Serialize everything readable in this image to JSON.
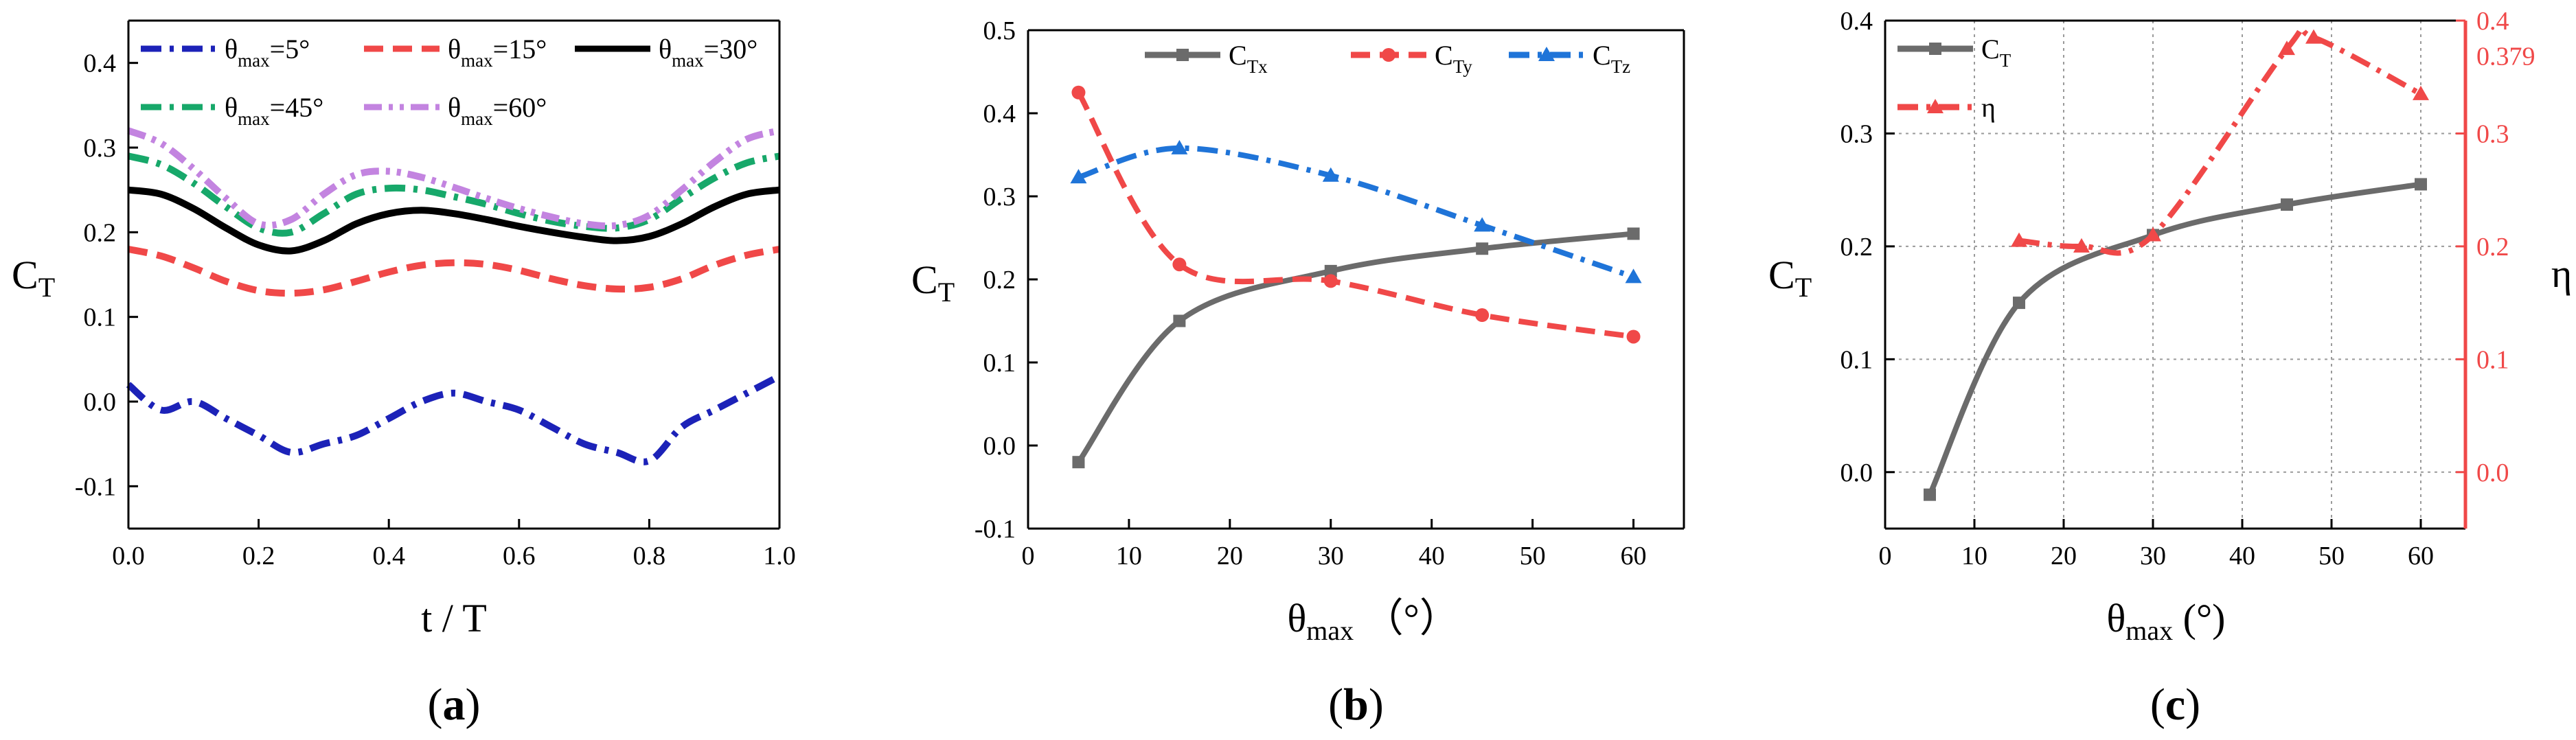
{
  "chart_data": [
    {
      "type": "line",
      "panel_label": "(a)",
      "panel_letter": "a",
      "ylabel": "C",
      "ylabel_sub": "T",
      "xlabel": "t  / T",
      "xlim": [
        0.0,
        1.0
      ],
      "ylim": [
        -0.15,
        0.45
      ],
      "xticks": [
        "0.0",
        "0.2",
        "0.4",
        "0.6",
        "0.8",
        "1.0"
      ],
      "yticks": [
        "-0.1",
        "0.0",
        "0.1",
        "0.2",
        "0.3",
        "0.4"
      ],
      "legend_position": "top",
      "series": [
        {
          "name": "θmax=5°",
          "name_main": "θ",
          "name_sub": "max",
          "name_tail": "=5°",
          "color": "#1c22b8",
          "dash": "dashdot",
          "x": [
            0.0,
            0.05,
            0.1,
            0.15,
            0.2,
            0.25,
            0.3,
            0.35,
            0.4,
            0.45,
            0.5,
            0.55,
            0.6,
            0.65,
            0.7,
            0.75,
            0.8,
            0.85,
            0.9,
            0.95,
            1.0
          ],
          "y": [
            0.02,
            -0.01,
            0.0,
            -0.02,
            -0.04,
            -0.06,
            -0.05,
            -0.04,
            -0.02,
            0.0,
            0.01,
            0.0,
            -0.01,
            -0.03,
            -0.05,
            -0.06,
            -0.07,
            -0.03,
            -0.01,
            0.01,
            0.03
          ]
        },
        {
          "name": "θmax=15°",
          "name_main": "θ",
          "name_sub": "max",
          "name_tail": "=15°",
          "color": "#f04848",
          "dash": "dashed",
          "x": [
            0.0,
            0.05,
            0.1,
            0.15,
            0.2,
            0.25,
            0.3,
            0.35,
            0.4,
            0.45,
            0.5,
            0.55,
            0.6,
            0.65,
            0.7,
            0.75,
            0.8,
            0.85,
            0.9,
            0.95,
            1.0
          ],
          "y": [
            0.18,
            0.172,
            0.158,
            0.142,
            0.131,
            0.128,
            0.132,
            0.142,
            0.153,
            0.161,
            0.164,
            0.162,
            0.155,
            0.145,
            0.137,
            0.133,
            0.135,
            0.145,
            0.161,
            0.173,
            0.18
          ]
        },
        {
          "name": "θmax=30°",
          "name_main": "θ",
          "name_sub": "max",
          "name_tail": "=30°",
          "color": "#000000",
          "dash": "solid",
          "x": [
            0.0,
            0.05,
            0.1,
            0.15,
            0.2,
            0.25,
            0.3,
            0.35,
            0.4,
            0.45,
            0.5,
            0.55,
            0.6,
            0.65,
            0.7,
            0.75,
            0.8,
            0.85,
            0.9,
            0.95,
            1.0
          ],
          "y": [
            0.25,
            0.245,
            0.228,
            0.205,
            0.185,
            0.178,
            0.19,
            0.21,
            0.222,
            0.226,
            0.222,
            0.215,
            0.207,
            0.2,
            0.194,
            0.19,
            0.195,
            0.21,
            0.23,
            0.245,
            0.25
          ]
        },
        {
          "name": "θmax=45°",
          "name_main": "θ",
          "name_sub": "max",
          "name_tail": "=45°",
          "color": "#17a86a",
          "dash": "dashdot",
          "x": [
            0.0,
            0.05,
            0.1,
            0.15,
            0.2,
            0.25,
            0.3,
            0.35,
            0.4,
            0.45,
            0.5,
            0.55,
            0.6,
            0.65,
            0.7,
            0.75,
            0.8,
            0.85,
            0.9,
            0.95,
            1.0
          ],
          "y": [
            0.29,
            0.28,
            0.258,
            0.23,
            0.205,
            0.2,
            0.222,
            0.245,
            0.252,
            0.25,
            0.242,
            0.233,
            0.222,
            0.213,
            0.207,
            0.205,
            0.215,
            0.24,
            0.264,
            0.282,
            0.29
          ]
        },
        {
          "name": "θmax=60°",
          "name_main": "θ",
          "name_sub": "max",
          "name_tail": "=60°",
          "color": "#c384e0",
          "dash": "dashdotdot",
          "x": [
            0.0,
            0.05,
            0.1,
            0.15,
            0.2,
            0.25,
            0.3,
            0.35,
            0.4,
            0.45,
            0.5,
            0.55,
            0.6,
            0.65,
            0.7,
            0.75,
            0.8,
            0.85,
            0.9,
            0.95,
            1.0
          ],
          "y": [
            0.32,
            0.305,
            0.275,
            0.24,
            0.21,
            0.215,
            0.245,
            0.268,
            0.272,
            0.265,
            0.253,
            0.24,
            0.228,
            0.218,
            0.21,
            0.208,
            0.22,
            0.25,
            0.283,
            0.31,
            0.32
          ]
        }
      ]
    },
    {
      "type": "line",
      "panel_label": "(b)",
      "panel_letter": "b",
      "ylabel": "C",
      "ylabel_sub": "T",
      "xlabel": "θ",
      "xlabel_sub": "max",
      "xlabel_tail": " （°）",
      "xlim": [
        0,
        65
      ],
      "ylim": [
        -0.1,
        0.5
      ],
      "xticks": [
        "0",
        "10",
        "20",
        "30",
        "40",
        "50",
        "60"
      ],
      "yticks": [
        "-0.1",
        "0.0",
        "0.1",
        "0.2",
        "0.3",
        "0.4",
        "0.5"
      ],
      "legend_position": "top",
      "series": [
        {
          "name": "CTx",
          "name_main": "C",
          "name_sub": "Tx",
          "color": "#6b6b6b",
          "dash": "solid",
          "marker": "square",
          "x": [
            5,
            15,
            30,
            45,
            60
          ],
          "y": [
            -0.02,
            0.15,
            0.21,
            0.237,
            0.255
          ]
        },
        {
          "name": "CTy",
          "name_main": "C",
          "name_sub": "Ty",
          "color": "#f04848",
          "dash": "dashed",
          "marker": "circle",
          "x": [
            5,
            15,
            30,
            45,
            60
          ],
          "y": [
            0.425,
            0.218,
            0.198,
            0.157,
            0.131
          ]
        },
        {
          "name": "CTz",
          "name_main": "C",
          "name_sub": "Tz",
          "color": "#1f74d8",
          "dash": "dashdot",
          "marker": "triangle",
          "x": [
            5,
            15,
            30,
            45,
            60
          ],
          "y": [
            0.323,
            0.358,
            0.325,
            0.265,
            0.203
          ]
        }
      ]
    },
    {
      "type": "line",
      "panel_label": "(c)",
      "panel_letter": "c",
      "ylabel": "C",
      "ylabel_sub": "T",
      "ylabel_right": "η",
      "xlabel": "θ",
      "xlabel_sub": "max",
      "xlabel_tail": " (°)",
      "xlim": [
        0,
        65
      ],
      "ylim": [
        -0.05,
        0.4
      ],
      "ylim_right": [
        -0.05,
        0.4
      ],
      "xticks": [
        "0",
        "10",
        "20",
        "30",
        "40",
        "50",
        "60"
      ],
      "yticks": [
        "0.0",
        "0.1",
        "0.2",
        "0.3",
        "0.4"
      ],
      "yticks_right": [
        "0.0",
        "0.1",
        "0.2",
        "0.3",
        "0.4"
      ],
      "annotation_right": "0.379",
      "annotation_value": 0.379,
      "grid": true,
      "legend_position": "top-left",
      "series": [
        {
          "name": "CT",
          "name_main": "C",
          "name_sub": "T",
          "color": "#6b6b6b",
          "dash": "solid",
          "marker": "square",
          "axis": "left",
          "x": [
            5,
            15,
            30,
            45,
            60
          ],
          "y": [
            -0.02,
            0.15,
            0.21,
            0.237,
            0.255
          ]
        },
        {
          "name": "η",
          "name_main": "η",
          "name_sub": "",
          "color": "#f04848",
          "dash": "dashdot",
          "marker": "triangle",
          "axis": "right",
          "x": [
            15,
            22,
            30,
            45,
            48,
            60
          ],
          "y": [
            0.205,
            0.2,
            0.21,
            0.375,
            0.385,
            0.335
          ]
        }
      ]
    }
  ]
}
